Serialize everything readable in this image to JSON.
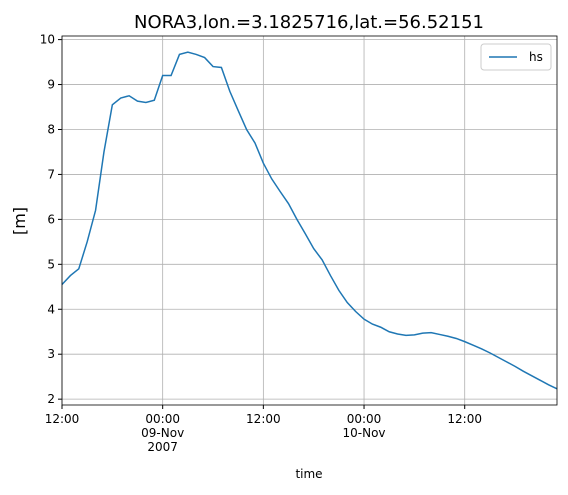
{
  "chart_data": {
    "type": "line",
    "title": "NORA3,lon.=3.1825716,lat.=56.52151",
    "xlabel": "time",
    "ylabel": "[m]",
    "x": [
      0,
      1,
      2,
      3,
      4,
      5,
      6,
      7,
      8,
      9,
      10,
      11,
      12,
      13,
      14,
      15,
      16,
      17,
      18,
      19,
      20,
      21,
      22,
      23,
      24,
      25,
      26,
      27,
      28,
      29,
      30,
      31,
      32,
      33,
      34,
      35,
      36,
      37,
      38,
      39,
      40,
      41,
      42,
      43,
      44,
      45,
      46,
      47,
      48,
      49,
      50,
      51,
      52,
      53,
      54,
      55,
      56,
      57,
      58,
      59
    ],
    "series": [
      {
        "name": "hs",
        "color": "#1f77b4",
        "values": [
          4.55,
          4.75,
          4.9,
          5.5,
          6.2,
          7.5,
          8.55,
          8.7,
          8.75,
          8.63,
          8.6,
          8.65,
          9.2,
          9.2,
          9.67,
          9.72,
          9.67,
          9.6,
          9.4,
          9.38,
          8.85,
          8.42,
          8.0,
          7.7,
          7.25,
          6.9,
          6.62,
          6.35,
          6.0,
          5.68,
          5.35,
          5.1,
          4.75,
          4.42,
          4.15,
          3.95,
          3.78,
          3.67,
          3.6,
          3.5,
          3.45,
          3.42,
          3.43,
          3.47,
          3.48,
          3.44,
          3.4,
          3.35,
          3.28,
          3.2,
          3.12,
          3.03,
          2.93,
          2.83,
          2.73,
          2.62,
          2.52,
          2.42,
          2.32,
          2.23
        ]
      }
    ],
    "xlim": [
      0,
      59
    ],
    "xticks": [
      {
        "value": 0,
        "label": "12:00"
      },
      {
        "value": 12,
        "label": "00:00\n09-Nov\n2007"
      },
      {
        "value": 24,
        "label": "12:00"
      },
      {
        "value": 36,
        "label": "00:00\n10-Nov"
      },
      {
        "value": 48,
        "label": "12:00"
      }
    ],
    "ylim": [
      1.87,
      10.08
    ],
    "yticks": [
      2,
      3,
      4,
      5,
      6,
      7,
      8,
      9,
      10
    ],
    "grid": true,
    "legend": "upper right"
  }
}
